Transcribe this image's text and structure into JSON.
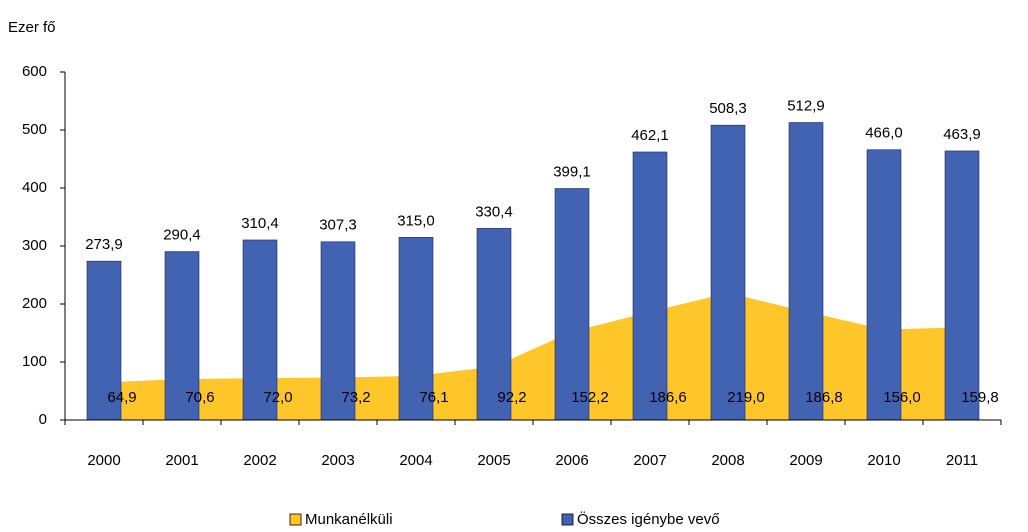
{
  "chart_data": {
    "type": "bar",
    "y_label": "Ezer fő",
    "categories": [
      "2000",
      "2001",
      "2002",
      "2003",
      "2004",
      "2005",
      "2006",
      "2007",
      "2008",
      "2009",
      "2010",
      "2011"
    ],
    "series": [
      {
        "name": "Munkanélküli",
        "type": "area",
        "color": "#ffc629",
        "values": [
          64.9,
          70.6,
          72.0,
          73.2,
          76.1,
          92.2,
          152.2,
          186.6,
          219.0,
          186.8,
          156.0,
          159.8
        ],
        "value_labels": [
          "64,9",
          "70,6",
          "72,0",
          "73,2",
          "76,1",
          "92,2",
          "152,2",
          "186,6",
          "219,0",
          "186,8",
          "156,0",
          "159,8"
        ]
      },
      {
        "name": "Összes igénybe vevő",
        "type": "bar",
        "color": "#4262b2",
        "values": [
          273.9,
          290.4,
          310.4,
          307.3,
          315.0,
          330.4,
          399.1,
          462.1,
          508.3,
          512.9,
          466.0,
          463.9
        ],
        "value_labels": [
          "273,9",
          "290,4",
          "310,4",
          "307,3",
          "315,0",
          "330,4",
          "399,1",
          "462,1",
          "508,3",
          "512,9",
          "466,0",
          "463,9"
        ]
      }
    ],
    "ylim": [
      0,
      600
    ],
    "yticks": [
      0,
      100,
      200,
      300,
      400,
      500,
      600
    ],
    "grid": false
  }
}
